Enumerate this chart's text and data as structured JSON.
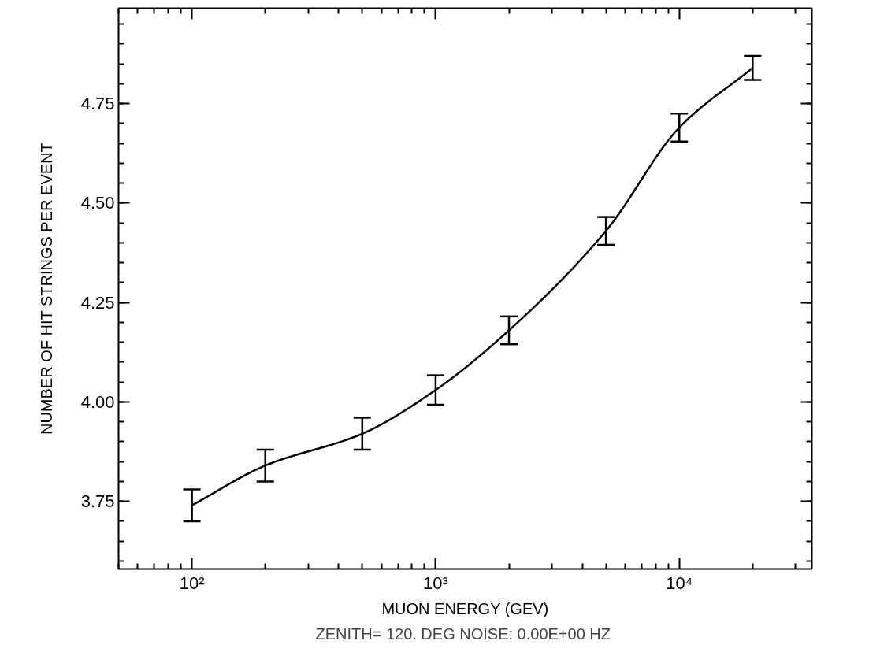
{
  "chart_data": {
    "type": "line",
    "xlabel": "MUON ENERGY (GEV)",
    "ylabel": "NUMBER OF HIT STRINGS PER EVENT",
    "annotations": [
      "ZENITH= 120. DEG  NOISE: 0.00E+00 HZ"
    ],
    "x": [
      100,
      200,
      500,
      1000,
      2000,
      5000,
      10000,
      20000
    ],
    "series": [
      {
        "color": "#000000",
        "values": [
          3.74,
          3.84,
          3.92,
          4.03,
          4.18,
          4.43,
          4.69,
          4.84
        ],
        "errors": [
          0.04,
          0.04,
          0.04,
          0.037,
          0.035,
          0.035,
          0.035,
          0.03
        ]
      }
    ],
    "log": "x",
    "xlim": [
      50,
      35000
    ],
    "xticks": [
      {
        "value": 100,
        "label": "10²"
      },
      {
        "value": 1000,
        "label": "10³"
      },
      {
        "value": 10000,
        "label": "10⁴"
      }
    ],
    "ylim": [
      3.58,
      4.99
    ],
    "yticks": [
      {
        "value": 3.75,
        "label": "3.75"
      },
      {
        "value": 4.0,
        "label": "4.00"
      },
      {
        "value": 4.25,
        "label": "4.25"
      },
      {
        "value": 4.5,
        "label": "4.50"
      },
      {
        "value": 4.75,
        "label": "4.75"
      }
    ],
    "grid": false,
    "marker": "none",
    "line_style": "solid"
  }
}
